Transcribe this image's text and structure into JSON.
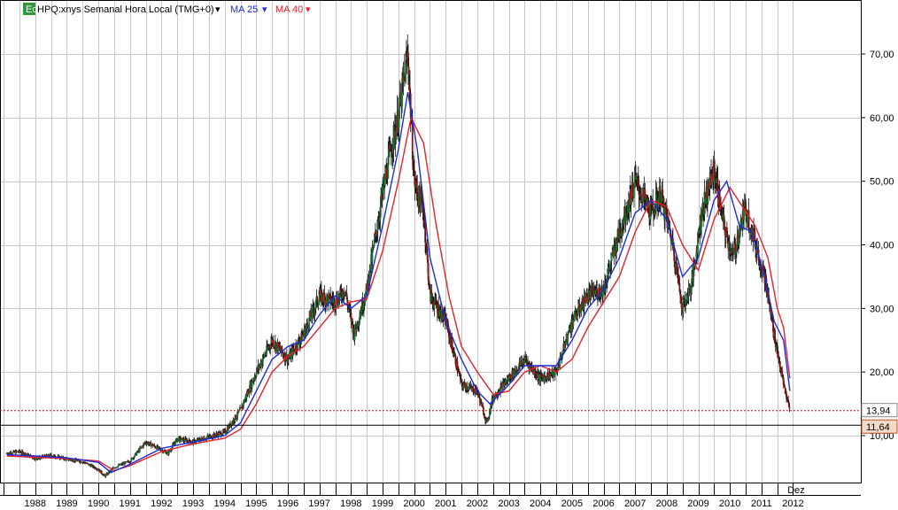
{
  "window": {
    "badge": "Eq",
    "symbol_title": "HPQ:xnys Semanal Hora Local (TMG+0)",
    "dropdown_glyph": "▾"
  },
  "legend": {
    "ma25_label": "MA 25",
    "ma40_label": "MA 40",
    "ma25_color": "#1c2cd8",
    "ma40_color": "#e8202c",
    "dropdown_glyph": "▾"
  },
  "colors": {
    "up_candle": "#1e7a3a",
    "down_candle": "#8b1010",
    "grid": "#c8c8c8",
    "ref_line": "#d01010"
  },
  "chart_data": {
    "type": "line",
    "title": "HPQ:xnys Semanal Hora Local (TMG+0)",
    "xlabel": "",
    "ylabel": "",
    "x_ticks": [
      "1988",
      "1989",
      "1990",
      "1991",
      "1992",
      "1993",
      "1994",
      "1995",
      "1996",
      "1997",
      "1998",
      "1999",
      "2000",
      "2001",
      "2002",
      "2003",
      "2004",
      "2005",
      "2006",
      "2007",
      "2008",
      "2009",
      "2010",
      "2011",
      "Dez",
      "2012"
    ],
    "y_ticks": [
      "10,00",
      "20,00",
      "30,00",
      "40,00",
      "50,00",
      "60,00",
      "70,00"
    ],
    "ylim": [
      2,
      78
    ],
    "xlim": [
      1987.5,
      2012.7
    ],
    "grid": true,
    "price_markers": [
      {
        "label": "13,94",
        "value": 13.94,
        "style": "dotted-red"
      },
      {
        "label": "11,64",
        "value": 11.64,
        "style": "solid-black"
      }
    ],
    "series": [
      {
        "name": "HPQ",
        "type": "candlestick",
        "x": [
          1987.6,
          1988.0,
          1988.5,
          1989.0,
          1989.5,
          1990.0,
          1990.3,
          1990.5,
          1990.7,
          1991.0,
          1991.5,
          1992.0,
          1992.4,
          1992.7,
          1993.0,
          1993.5,
          1994.0,
          1994.5,
          1995.0,
          1995.5,
          1996.0,
          1996.5,
          1997.0,
          1997.5,
          1998.0,
          1998.3,
          1998.6,
          1999.0,
          1999.5,
          1999.8,
          2000.0,
          2000.3,
          2000.5,
          2000.8,
          2001.0,
          2001.5,
          2002.0,
          2002.5,
          2002.8,
          2003.0,
          2003.5,
          2004.0,
          2004.5,
          2005.0,
          2005.5,
          2006.0,
          2006.5,
          2007.0,
          2007.5,
          2008.0,
          2008.3,
          2008.7,
          2009.0,
          2009.3,
          2009.6,
          2010.0,
          2010.3,
          2010.6,
          2011.0,
          2011.2,
          2011.6,
          2011.9,
          2012.2,
          2012.4
        ],
        "values": [
          7.2,
          7.5,
          6.4,
          6.9,
          6.3,
          5.9,
          5.2,
          4.7,
          3.6,
          5.0,
          6.0,
          9.0,
          8.0,
          7.2,
          9.5,
          9.0,
          9.8,
          10.5,
          14.0,
          20.0,
          25.0,
          22.0,
          26.0,
          32.0,
          31.0,
          33.0,
          26.0,
          33.0,
          48.0,
          56.0,
          60.0,
          70.0,
          50.0,
          45.0,
          32.0,
          28.0,
          18.0,
          17.0,
          12.0,
          16.0,
          19.0,
          22.0,
          19.0,
          20.0,
          28.0,
          32.0,
          33.0,
          42.0,
          50.0,
          45.0,
          48.0,
          40.0,
          30.0,
          34.0,
          45.0,
          52.0,
          43.0,
          38.0,
          46.0,
          42.0,
          35.0,
          26.0,
          18.0,
          13.9
        ]
      },
      {
        "name": "MA 25",
        "x": [
          1987.6,
          1988.5,
          1989.5,
          1990.5,
          1990.9,
          1991.5,
          1992.5,
          1993.5,
          1994.5,
          1995.0,
          1995.5,
          1996.0,
          1996.5,
          1997.0,
          1997.5,
          1998.0,
          1998.5,
          1999.0,
          1999.5,
          2000.0,
          2000.3,
          2000.6,
          2001.0,
          2001.5,
          2002.0,
          2002.5,
          2002.9,
          2003.5,
          2004.0,
          2004.5,
          2005.0,
          2005.5,
          2006.0,
          2006.5,
          2007.0,
          2007.5,
          2008.0,
          2008.5,
          2009.0,
          2009.5,
          2010.0,
          2010.4,
          2010.8,
          2011.2,
          2011.6,
          2011.9,
          2012.2,
          2012.4
        ],
        "values": [
          7.0,
          6.8,
          6.5,
          5.8,
          4.2,
          5.5,
          8.0,
          9.0,
          10.0,
          12.0,
          17.0,
          22.0,
          24.0,
          25.0,
          29.0,
          32.0,
          30.0,
          32.0,
          43.0,
          55.0,
          64.0,
          55.0,
          38.0,
          28.0,
          22.0,
          17.0,
          15.0,
          18.0,
          21.0,
          21.0,
          21.0,
          25.0,
          30.0,
          33.0,
          38.0,
          45.0,
          47.0,
          44.0,
          35.0,
          38.0,
          47.0,
          50.0,
          43.0,
          42.0,
          35.0,
          28.0,
          25.0,
          17.0
        ]
      },
      {
        "name": "MA 40",
        "x": [
          1987.6,
          1988.5,
          1989.5,
          1990.5,
          1991.0,
          1991.5,
          1992.5,
          1993.5,
          1994.5,
          1995.0,
          1995.5,
          1996.0,
          1996.5,
          1997.0,
          1997.5,
          1998.0,
          1998.5,
          1999.0,
          1999.5,
          2000.0,
          2000.4,
          2000.8,
          2001.2,
          2001.6,
          2002.0,
          2002.5,
          2003.0,
          2003.5,
          2004.0,
          2004.5,
          2005.0,
          2005.5,
          2006.0,
          2006.5,
          2007.0,
          2007.5,
          2008.0,
          2008.5,
          2009.0,
          2009.5,
          2010.0,
          2010.5,
          2010.9,
          2011.3,
          2011.7,
          2012.0,
          2012.2,
          2012.4
        ],
        "values": [
          6.8,
          6.6,
          6.4,
          6.0,
          4.5,
          5.3,
          7.5,
          8.7,
          9.6,
          11.0,
          15.0,
          20.0,
          22.5,
          24.0,
          27.0,
          30.0,
          31.0,
          31.5,
          39.0,
          50.0,
          60.0,
          56.0,
          43.0,
          32.0,
          24.0,
          20.0,
          16.5,
          17.0,
          20.0,
          21.0,
          20.0,
          22.0,
          27.0,
          31.0,
          35.0,
          42.0,
          47.0,
          46.0,
          40.0,
          36.0,
          44.0,
          49.0,
          46.0,
          43.0,
          38.0,
          30.0,
          27.0,
          19.0
        ]
      }
    ]
  }
}
